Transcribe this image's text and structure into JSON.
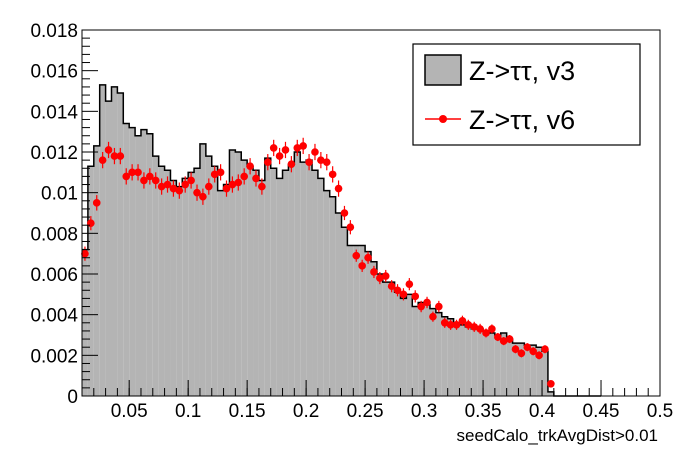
{
  "chart_data": {
    "type": "histogram",
    "xlabel": "seedCalo_trkAvgDist>0.01",
    "ylabel": "",
    "title": "",
    "xlim": [
      0.01,
      0.5
    ],
    "ylim": [
      0,
      0.018
    ],
    "grid": false,
    "legend_position": "top-right",
    "x_ticks": [
      0.05,
      0.1,
      0.15,
      0.2,
      0.25,
      0.3,
      0.35,
      0.4,
      0.45,
      0.5
    ],
    "x_tick_labels": [
      "0.05",
      "0.1",
      "0.15",
      "0.2",
      "0.25",
      "0.3",
      "0.35",
      "0.4",
      "0.45",
      "0.5"
    ],
    "y_ticks": [
      0,
      0.002,
      0.004,
      0.006,
      0.008,
      0.01,
      0.012,
      0.014,
      0.016,
      0.018
    ],
    "y_tick_labels": [
      "0",
      "0.002",
      "0.004",
      "0.006",
      "0.008",
      "0.01",
      "0.012",
      "0.014",
      "0.016",
      "0.018"
    ],
    "bin_width": 0.005,
    "series": [
      {
        "name": "Z->ττ, v3",
        "style": "filled-histogram",
        "fill_color": "#b4b4b4",
        "line_color": "#000000",
        "values": [
          0.0072,
          0.0113,
          0.0123,
          0.0153,
          0.0145,
          0.0152,
          0.0149,
          0.0134,
          0.0132,
          0.0128,
          0.0131,
          0.0129,
          0.0118,
          0.0113,
          0.0111,
          0.0106,
          0.0103,
          0.0107,
          0.011,
          0.0112,
          0.0124,
          0.0118,
          0.0113,
          0.0101,
          0.0104,
          0.0121,
          0.012,
          0.0116,
          0.0113,
          0.0111,
          0.0106,
          0.0117,
          0.0112,
          0.0107,
          0.0111,
          0.0114,
          0.012,
          0.0115,
          0.0116,
          0.0111,
          0.0107,
          0.0101,
          0.0098,
          0.009,
          0.0083,
          0.0074,
          0.0074,
          0.0074,
          0.0071,
          0.0066,
          0.006,
          0.0056,
          0.0056,
          0.0051,
          0.0048,
          0.005,
          0.0044,
          0.0046,
          0.0045,
          0.0043,
          0.0041,
          0.0039,
          0.0038,
          0.0036,
          0.0035,
          0.0034,
          0.0033,
          0.0033,
          0.0032,
          0.0031,
          0.003,
          0.0031,
          0.0028,
          0.0026,
          0.0026,
          0.0025,
          0.0025,
          0.0024,
          0.0022,
          0.0002,
          0,
          0,
          0,
          0,
          0,
          0,
          0,
          0
        ]
      },
      {
        "name": "Z->ττ, v6",
        "style": "markers-with-errors",
        "color": "#ff0000",
        "values": [
          0.007,
          0.0085,
          0.0095,
          0.0116,
          0.0121,
          0.0118,
          0.0118,
          0.0108,
          0.011,
          0.011,
          0.0106,
          0.0108,
          0.0106,
          0.0103,
          0.0104,
          0.0102,
          0.0101,
          0.0104,
          0.0106,
          0.01,
          0.0098,
          0.0103,
          0.0109,
          0.011,
          0.0102,
          0.0104,
          0.0105,
          0.0108,
          0.0113,
          0.0107,
          0.0103,
          0.0115,
          0.0122,
          0.0118,
          0.0121,
          0.0114,
          0.0122,
          0.0123,
          0.0115,
          0.012,
          0.0116,
          0.0115,
          0.0109,
          0.0102,
          0.009,
          0.0083,
          0.0069,
          0.0064,
          0.0068,
          0.0061,
          0.0058,
          0.0059,
          0.0054,
          0.0052,
          0.005,
          0.0055,
          0.0049,
          0.0044,
          0.0046,
          0.0039,
          0.0044,
          0.0036,
          0.0035,
          0.0035,
          0.0037,
          0.0035,
          0.0034,
          0.0033,
          0.0031,
          0.0033,
          0.0029,
          0.0027,
          0.0028,
          0.0023,
          0.0021,
          0.0024,
          0.0022,
          0.002,
          0.0023,
          0.0006
        ],
        "errors": [
          0.00035,
          0.00035,
          0.00038,
          0.0004,
          0.0004,
          0.0004,
          0.0004,
          0.0004,
          0.0004,
          0.0004,
          0.0004,
          0.0004,
          0.0004,
          0.0004,
          0.0004,
          0.0004,
          0.0004,
          0.0004,
          0.0004,
          0.0004,
          0.0004,
          0.0004,
          0.0004,
          0.0004,
          0.0004,
          0.0004,
          0.0004,
          0.0004,
          0.0004,
          0.0004,
          0.0004,
          0.0004,
          0.0004,
          0.0004,
          0.0004,
          0.0004,
          0.0004,
          0.0004,
          0.0004,
          0.0004,
          0.0004,
          0.0004,
          0.0004,
          0.0004,
          0.00035,
          0.00035,
          0.0003,
          0.0003,
          0.0003,
          0.0003,
          0.0003,
          0.0003,
          0.0003,
          0.0003,
          0.0003,
          0.0003,
          0.0003,
          0.00028,
          0.00028,
          0.00025,
          0.00028,
          0.00025,
          0.00025,
          0.00025,
          0.00025,
          0.00025,
          0.00025,
          0.00025,
          0.00022,
          0.00022,
          0.0002,
          0.0002,
          0.0002,
          0.0002,
          0.0002,
          0.0002,
          0.0002,
          0.0002,
          0.0002,
          0.00015
        ]
      }
    ]
  }
}
